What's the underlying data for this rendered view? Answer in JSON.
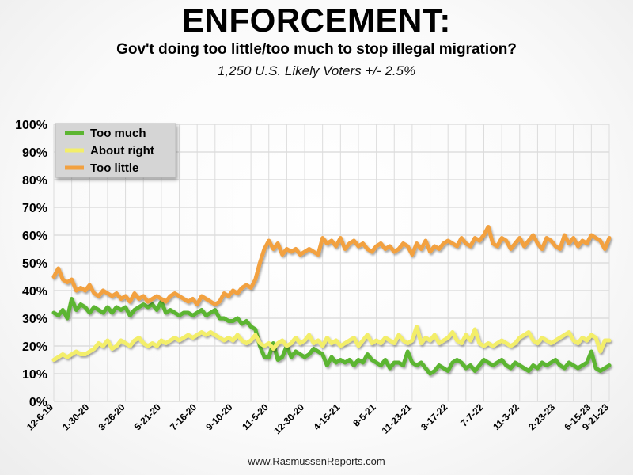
{
  "chart_data": {
    "type": "line",
    "title": "ENFORCEMENT:",
    "subtitle": "Gov't doing too little/too much to stop illegal migration?",
    "note": "1,250 U.S. Likely Voters +/- 2.5%",
    "source": "www.RasmussenReports.com",
    "xlabel": "",
    "ylabel": "",
    "ylim": [
      0,
      100
    ],
    "y_ticks": [
      0,
      10,
      20,
      30,
      40,
      50,
      60,
      70,
      80,
      90,
      100
    ],
    "y_tick_labels": [
      "0%",
      "10%",
      "20%",
      "30%",
      "40%",
      "50%",
      "60%",
      "70%",
      "80%",
      "90%",
      "100%"
    ],
    "x_tick_labels": [
      "12-6-19",
      "1-30-20",
      "3-26-20",
      "5-21-20",
      "7-16-20",
      "9-10-20",
      "11-5-20",
      "12-30-20",
      "4-15-21",
      "8-5-21",
      "11-23-21",
      "3-17-22",
      "7-7-22",
      "11-3-22",
      "2-23-23",
      "6-15-23",
      "9-21-23"
    ],
    "x_ticks": [
      0,
      8,
      16,
      24,
      32,
      40,
      48,
      56,
      64,
      72,
      80,
      88,
      96,
      104,
      112,
      120,
      124
    ],
    "grid": true,
    "legend_position": "top-left",
    "colors": {
      "Too much": "#5cb531",
      "About right": "#f3ee6a",
      "Too little": "#f2a140"
    },
    "series": [
      {
        "name": "Too much",
        "values": [
          32,
          31,
          33,
          30,
          37,
          33,
          35,
          34,
          32,
          34,
          33,
          32,
          34,
          32,
          34,
          33,
          34,
          31,
          33,
          34,
          35,
          34,
          35,
          33,
          36,
          32,
          33,
          32,
          31,
          32,
          32,
          31,
          32,
          33,
          31,
          32,
          33,
          30,
          30,
          29,
          29,
          30,
          28,
          29,
          27,
          26,
          20,
          16,
          16,
          21,
          15,
          16,
          20,
          16,
          18,
          17,
          16,
          17,
          19,
          18,
          17,
          13,
          16,
          14,
          15,
          14,
          15,
          13,
          15,
          14,
          17,
          15,
          14,
          13,
          15,
          12,
          14,
          14,
          13,
          18,
          14,
          13,
          14,
          12,
          10,
          11,
          13,
          12,
          11,
          14,
          15,
          14,
          12,
          13,
          11,
          13,
          15,
          14,
          13,
          14,
          15,
          13,
          12,
          14,
          13,
          12,
          11,
          13,
          12,
          14,
          13,
          14,
          15,
          13,
          12,
          14,
          13,
          12,
          13,
          14,
          18,
          12,
          11,
          12,
          13
        ]
      },
      {
        "name": "About right",
        "values": [
          15,
          16,
          17,
          16,
          17,
          18,
          17,
          17,
          18,
          19,
          21,
          20,
          22,
          19,
          20,
          22,
          21,
          20,
          22,
          23,
          21,
          20,
          21,
          20,
          22,
          21,
          22,
          23,
          22,
          23,
          24,
          23,
          24,
          25,
          24,
          25,
          24,
          23,
          22,
          23,
          22,
          24,
          22,
          21,
          22,
          24,
          21,
          20,
          21,
          19,
          21,
          22,
          20,
          21,
          23,
          21,
          22,
          24,
          21,
          22,
          20,
          23,
          21,
          22,
          20,
          21,
          22,
          23,
          20,
          22,
          24,
          21,
          22,
          21,
          23,
          22,
          21,
          24,
          22,
          21,
          22,
          27,
          21,
          23,
          22,
          24,
          21,
          22,
          23,
          25,
          22,
          21,
          24,
          22,
          26,
          21,
          20,
          21,
          20,
          21,
          22,
          21,
          20,
          21,
          23,
          24,
          25,
          22,
          21,
          23,
          22,
          21,
          22,
          23,
          24,
          25,
          22,
          21,
          23,
          22,
          24,
          23,
          18,
          22,
          22
        ]
      },
      {
        "name": "Too little",
        "values": [
          45,
          48,
          44,
          43,
          44,
          40,
          41,
          40,
          42,
          39,
          38,
          40,
          39,
          38,
          39,
          37,
          38,
          36,
          39,
          37,
          38,
          36,
          37,
          38,
          37,
          36,
          38,
          39,
          38,
          37,
          36,
          37,
          35,
          38,
          37,
          36,
          35,
          36,
          39,
          38,
          40,
          39,
          41,
          42,
          41,
          44,
          50,
          55,
          58,
          55,
          57,
          53,
          55,
          54,
          55,
          53,
          54,
          55,
          54,
          53,
          59,
          57,
          58,
          56,
          59,
          55,
          57,
          58,
          56,
          57,
          55,
          54,
          56,
          57,
          55,
          56,
          54,
          55,
          57,
          56,
          53,
          57,
          55,
          58,
          54,
          56,
          55,
          57,
          58,
          57,
          56,
          59,
          57,
          56,
          59,
          58,
          60,
          63,
          57,
          56,
          59,
          58,
          55,
          57,
          59,
          56,
          58,
          60,
          57,
          55,
          59,
          58,
          56,
          55,
          60,
          57,
          59,
          56,
          58,
          57,
          60,
          59,
          58,
          55,
          59
        ]
      }
    ]
  }
}
